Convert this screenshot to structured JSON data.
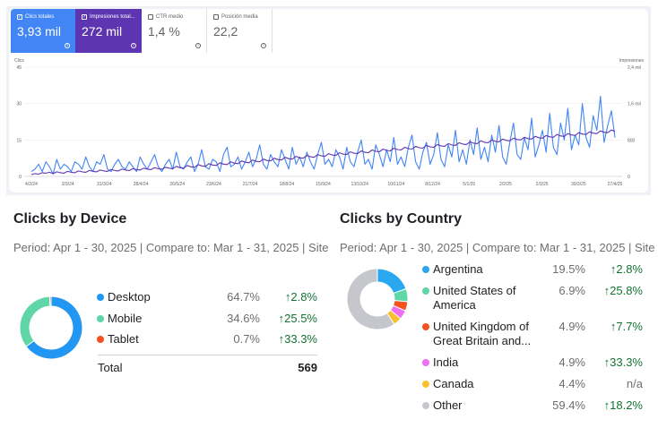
{
  "gsc": {
    "metrics": [
      {
        "id": "clicks",
        "label": "Clics totales",
        "value": "3,93 mil"
      },
      {
        "id": "impressions",
        "label": "Impresiones total...",
        "value": "272 mil"
      },
      {
        "id": "ctr",
        "label": "CTR medio",
        "value": "1,4 %"
      },
      {
        "id": "position",
        "label": "Posición media",
        "value": "22,2"
      }
    ],
    "check_glyph": "✓",
    "help_glyph": "?"
  },
  "chart_data": {
    "type": "line",
    "left_axis_label": "Clics",
    "right_axis_label": "Impresiones",
    "left_ticks": [
      "45",
      "30",
      "15",
      "0"
    ],
    "right_ticks": [
      "2,4 mil",
      "1,6 mil",
      "800",
      "0"
    ],
    "ylim_left": [
      0,
      45
    ],
    "ylim_right": [
      0,
      2400
    ],
    "x_ticks": [
      "4/2/24",
      "3/3/24",
      "31/3/24",
      "28/4/24",
      "26/5/24",
      "23/6/24",
      "21/7/24",
      "18/8/24",
      "15/9/24",
      "13/10/24",
      "10/11/24",
      "8/12/24",
      "5/1/25",
      "2/2/25",
      "2/3/25",
      "30/3/25",
      "27/4/25"
    ],
    "series": [
      {
        "name": "Clics",
        "color": "#4285f4",
        "values": [
          2,
          3,
          5,
          2,
          6,
          4,
          1,
          7,
          3,
          5,
          4,
          2,
          6,
          5,
          3,
          8,
          4,
          2,
          6,
          5,
          9,
          3,
          2,
          5,
          7,
          4,
          3,
          6,
          4,
          2,
          8,
          5,
          3,
          6,
          9,
          4,
          2,
          5,
          7,
          3,
          10,
          4,
          3,
          6,
          8,
          2,
          5,
          11,
          4,
          3,
          7,
          6,
          2,
          9,
          12,
          4,
          5,
          8,
          3,
          6,
          10,
          4,
          7,
          13,
          5,
          3,
          9,
          6,
          4,
          11,
          7,
          3,
          12,
          5,
          8,
          4,
          10,
          6,
          3,
          9,
          14,
          5,
          7,
          4,
          11,
          8,
          3,
          12,
          6,
          4,
          10,
          15,
          5,
          7,
          3,
          13,
          9,
          4,
          11,
          6,
          16,
          5,
          8,
          4,
          12,
          17,
          6,
          3,
          10,
          14,
          5,
          9,
          18,
          7,
          4,
          13,
          8,
          19,
          6,
          11,
          5,
          15,
          9,
          20,
          7,
          12,
          6,
          17,
          10,
          21,
          8,
          5,
          14,
          22,
          9,
          7,
          16,
          11,
          24,
          8,
          13,
          19,
          10,
          26,
          12,
          9,
          22,
          15,
          28,
          11,
          17,
          13,
          30,
          16,
          12,
          25,
          19,
          33,
          14,
          21,
          27,
          16
        ]
      },
      {
        "name": "Impresiones",
        "color": "#5e35b1",
        "values": [
          40,
          60,
          50,
          80,
          70,
          90,
          60,
          100,
          80,
          70,
          110,
          90,
          80,
          120,
          100,
          90,
          130,
          110,
          100,
          140,
          120,
          110,
          150,
          130,
          120,
          160,
          140,
          130,
          170,
          150,
          140,
          180,
          160,
          150,
          190,
          170,
          160,
          200,
          180,
          170,
          220,
          190,
          180,
          240,
          210,
          200,
          260,
          230,
          220,
          280,
          250,
          240,
          300,
          270,
          260,
          320,
          290,
          280,
          340,
          310,
          300,
          360,
          330,
          320,
          380,
          350,
          340,
          400,
          370,
          360,
          420,
          390,
          380,
          440,
          410,
          400,
          460,
          430,
          420,
          480,
          450,
          440,
          500,
          470,
          460,
          520,
          490,
          480,
          540,
          510,
          500,
          560,
          530,
          520,
          580,
          550,
          540,
          600,
          570,
          560,
          620,
          590,
          580,
          640,
          610,
          600,
          660,
          630,
          620,
          680,
          650,
          640,
          700,
          670,
          660,
          720,
          690,
          680,
          740,
          710,
          700,
          760,
          730,
          720,
          780,
          750,
          740,
          800,
          770,
          760,
          820,
          790,
          780,
          840,
          810,
          800,
          860,
          830,
          820,
          880,
          850,
          840,
          900,
          870,
          860,
          920,
          890,
          880,
          940,
          910,
          900,
          960,
          930,
          920,
          980,
          950,
          940,
          1000,
          970,
          960,
          1020,
          990
        ]
      }
    ]
  },
  "device": {
    "title": "Clicks by Device",
    "period": "Period: Apr 1 - 30, 2025 | Compare to: Mar 1 - 31, 2025 | Site",
    "rows": [
      {
        "label": "Desktop",
        "pct": "64.7%",
        "change": "↑2.8%",
        "color": "#2196f3",
        "share": 64.7
      },
      {
        "label": "Mobile",
        "pct": "34.6%",
        "change": "↑25.5%",
        "color": "#5ed6a8",
        "share": 34.6
      },
      {
        "label": "Tablet",
        "pct": "0.7%",
        "change": "↑33.3%",
        "color": "#f4511e",
        "share": 0.7
      }
    ],
    "total_label": "Total",
    "total_value": "569"
  },
  "country": {
    "title": "Clicks by Country",
    "period": "Period: Apr 1 - 30, 2025 | Compare to: Mar 1 - 31, 2025 | Site",
    "rows": [
      {
        "label": "Argentina",
        "pct": "19.5%",
        "change": "↑2.8%",
        "color": "#29a8f0",
        "share": 19.5
      },
      {
        "label": "United States of America",
        "pct": "6.9%",
        "change": "↑25.8%",
        "color": "#5ed6a8",
        "share": 6.9
      },
      {
        "label": "United Kingdom of Great Britain and...",
        "pct": "4.9%",
        "change": "↑7.7%",
        "color": "#f4511e",
        "share": 4.9
      },
      {
        "label": "India",
        "pct": "4.9%",
        "change": "↑33.3%",
        "color": "#ee6ef2",
        "share": 4.9
      },
      {
        "label": "Canada",
        "pct": "4.4%",
        "change": "n/a",
        "color": "#fbc02d",
        "share": 4.4
      },
      {
        "label": "Other",
        "pct": "59.4%",
        "change": "↑18.2%",
        "color": "#c6c7cd",
        "share": 59.4
      }
    ]
  }
}
